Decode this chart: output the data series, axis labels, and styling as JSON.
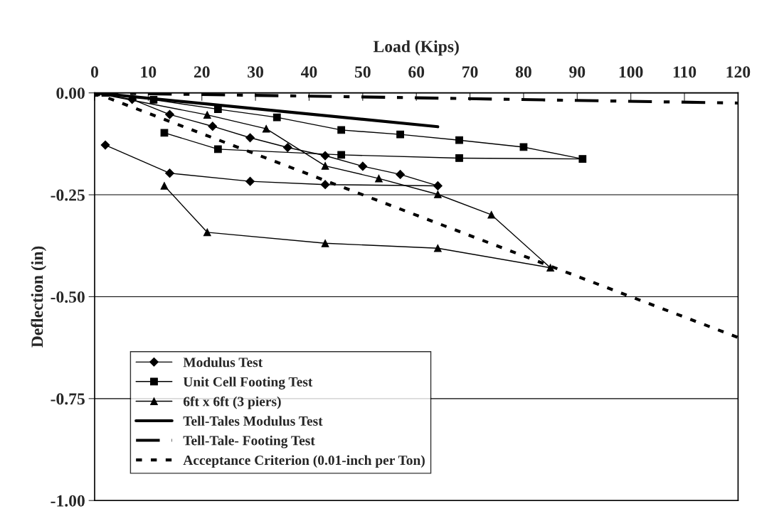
{
  "chart_data": {
    "type": "line",
    "xlabel": "Load (Kips)",
    "ylabel": "Deflection (in)",
    "xlim": [
      0,
      120
    ],
    "xticks": [
      0,
      10,
      20,
      30,
      40,
      50,
      60,
      70,
      80,
      90,
      100,
      110,
      120
    ],
    "ylim": [
      -1.0,
      0.0
    ],
    "yticks": [
      {
        "value": -1.0,
        "label": "-1.00"
      },
      {
        "value": -0.75,
        "label": "-0.75"
      },
      {
        "value": -0.5,
        "label": "-0.50"
      },
      {
        "value": -0.25,
        "label": "-0.25"
      },
      {
        "value": 0,
        "label": "0.00"
      }
    ],
    "grid": "y",
    "legend": "bottom left",
    "series": [
      {
        "name": "Modulus Test",
        "color": "#000000",
        "marker": "diamond",
        "line_style": "solid",
        "x": [
          0,
          7,
          14,
          22,
          29,
          36,
          43,
          50,
          57,
          64,
          43,
          29,
          14,
          2
        ],
        "values": [
          0,
          -0.016,
          -0.053,
          -0.082,
          -0.11,
          -0.134,
          -0.154,
          -0.18,
          -0.2,
          -0.228,
          -0.225,
          -0.217,
          -0.197,
          -0.128
        ]
      },
      {
        "name": "Unit Cell Footing Test",
        "color": "#000000",
        "marker": "square",
        "line_style": "solid",
        "x": [
          2,
          11,
          23,
          34,
          46,
          57,
          68,
          80,
          91,
          68,
          46,
          23,
          13
        ],
        "values": [
          0,
          -0.017,
          -0.04,
          -0.06,
          -0.091,
          -0.102,
          -0.116,
          -0.133,
          -0.162,
          -0.16,
          -0.152,
          -0.138,
          -0.098
        ]
      },
      {
        "name": "6ft x 6ft (3 piers)",
        "color": "#000000",
        "marker": "triangle",
        "line_style": "solid",
        "x": [
          0,
          21,
          32,
          43,
          53,
          64,
          74,
          85,
          64,
          43,
          21,
          13
        ],
        "values": [
          0,
          -0.054,
          -0.088,
          -0.179,
          -0.21,
          -0.249,
          -0.299,
          -0.429,
          -0.381,
          -0.369,
          -0.342,
          -0.228
        ]
      },
      {
        "name": "Tell-Tales Modulus Test",
        "color": "#000000",
        "marker": "none",
        "line_style": "solid",
        "x": [
          0,
          64
        ],
        "values": [
          0,
          -0.083
        ]
      },
      {
        "name": "Tell-Tale- Footing Test",
        "color": "#000000",
        "marker": "none",
        "line_style": "dashdot",
        "x": [
          0,
          60,
          120
        ],
        "values": [
          0,
          -0.012,
          -0.025
        ]
      },
      {
        "name": "Acceptance Criterion (0.01-inch per Ton)",
        "color": "#000000",
        "marker": "none",
        "line_style": "dashed",
        "x": [
          0,
          120
        ],
        "values": [
          0,
          -0.6
        ]
      }
    ]
  }
}
